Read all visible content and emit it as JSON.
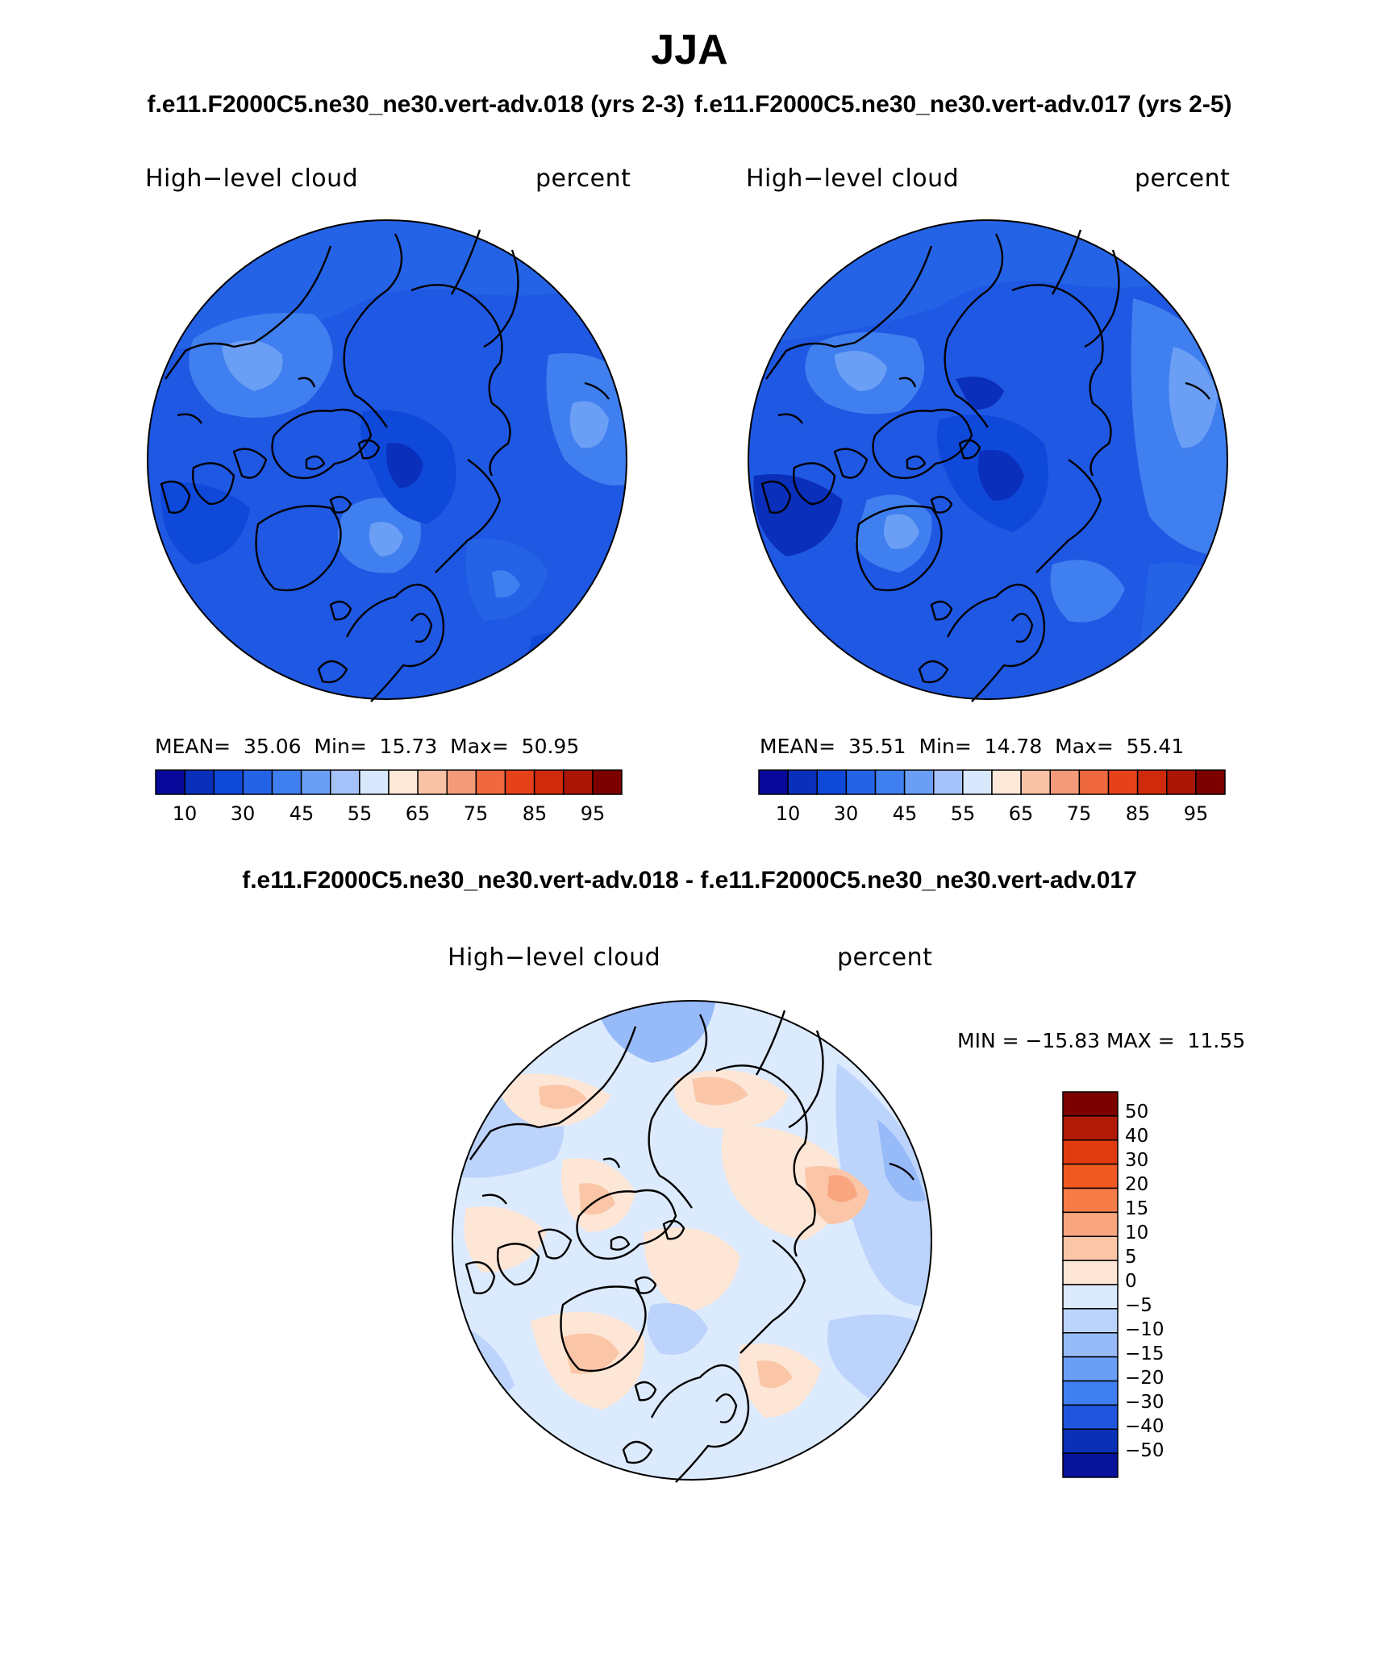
{
  "figure": {
    "season": "JJA",
    "case_a_label": "f.e11.F2000C5.ne30_ne30.vert-adv.018 (yrs 2-3)",
    "case_b_label": "f.e11.F2000C5.ne30_ne30.vert-adv.017 (yrs 2-5)",
    "diff_label": "f.e11.F2000C5.ne30_ne30.vert-adv.018 - f.e11.F2000C5.ne30_ne30.vert-adv.017"
  },
  "panels": [
    {
      "variable": "High−level cloud",
      "units": "percent",
      "stats_text": "MEAN=  35.06  Min=  15.73  Max=  50.95",
      "mean": 35.06,
      "min": 15.73,
      "max": 50.95
    },
    {
      "variable": "High−level cloud",
      "units": "percent",
      "stats_text": "MEAN=  35.51  Min=  14.78  Max=  55.41",
      "mean": 35.51,
      "min": 14.78,
      "max": 55.41
    }
  ],
  "diff_panel": {
    "variable": "High−level cloud",
    "units": "percent",
    "stats_text": "MIN = −15.83 MAX =  11.55",
    "min": -15.83,
    "max": 11.55
  },
  "colorbars": {
    "abs": {
      "tick_labels": [
        "10",
        "30",
        "45",
        "55",
        "65",
        "75",
        "85",
        "95"
      ],
      "colors": [
        "#08089a",
        "#0a2fbb",
        "#0f49d9",
        "#2563e6",
        "#3f7fef",
        "#6b9ff5",
        "#a5c3fa",
        "#d8e8fd",
        "#fde8da",
        "#f9c1a6",
        "#f39a7a",
        "#f0683e",
        "#e7411a",
        "#cf2a0c",
        "#aa1606",
        "#7d0000"
      ]
    },
    "diff": {
      "tick_labels": [
        "50",
        "40",
        "30",
        "20",
        "15",
        "10",
        "5",
        "0",
        "−5",
        "−10",
        "−15",
        "−20",
        "−30",
        "−40",
        "−50"
      ],
      "colors": [
        "#7d0000",
        "#b21a08",
        "#e03a10",
        "#f05a22",
        "#f67c48",
        "#f9a57e",
        "#fbc6a8",
        "#fde6d6",
        "#dceafe",
        "#bcd4fb",
        "#97baf8",
        "#6b9ff5",
        "#3f7fef",
        "#1f55dd",
        "#0a30b8",
        "#06139a"
      ]
    }
  }
}
